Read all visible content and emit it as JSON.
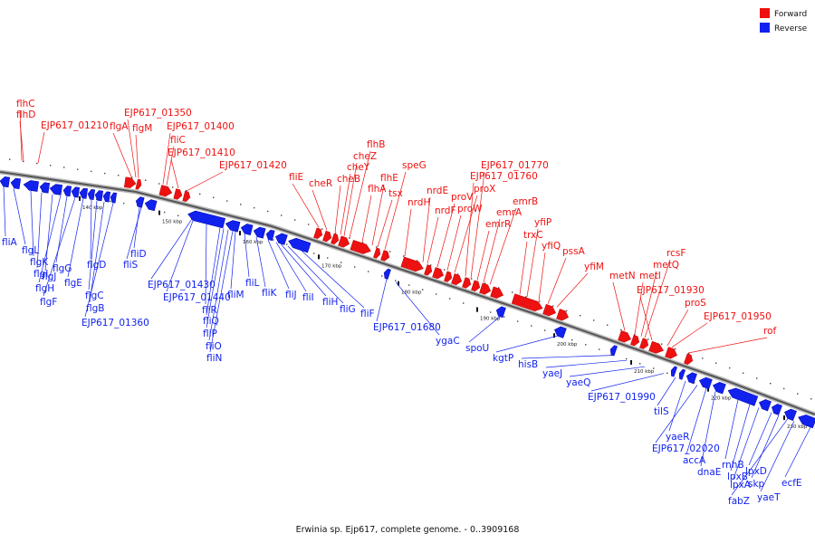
{
  "caption": "Erwinia sp. Ejp617, complete genome. - 0..3909168",
  "legend": {
    "forward": {
      "label": "Forward",
      "color": "#ee1111"
    },
    "reverse": {
      "label": "Reverse",
      "color": "#1122ee"
    }
  },
  "ticks": [
    "140 kbp",
    "150 kbp",
    "160 kbp",
    "170 kbp",
    "180 kbp",
    "190 kbp",
    "200 kbp",
    "210 kbp",
    "220 kbp",
    "230 kbp"
  ],
  "forward_labels": [
    "flhC",
    "flhD",
    "EJP617_01210",
    "flgA",
    "EJP617_01350",
    "flgM",
    "EJP617_01400",
    "fliC",
    "EJP617_01410",
    "EJP617_01420",
    "fliE",
    "cheR",
    "cheB",
    "cheY",
    "cheZ",
    "flhB",
    "flhA",
    "flhE",
    "tsx",
    "speG",
    "nrdH",
    "nrdE",
    "nrdF",
    "proV",
    "proW",
    "proX",
    "EJP617_01760",
    "EJP617_01770",
    "emrR",
    "emrA",
    "emrB",
    "trxC",
    "yfiP",
    "yfiQ",
    "pssA",
    "yfiM",
    "metN",
    "metI",
    "metQ",
    "rcsF",
    "EJP617_01930",
    "proS",
    "EJP617_01950",
    "rof"
  ],
  "reverse_labels": [
    "fliA",
    "flgL",
    "flgK",
    "flgI",
    "flgJ",
    "flgH",
    "flgG",
    "flgF",
    "flgE",
    "flgD",
    "flgC",
    "flgB",
    "EJP617_01360",
    "fliD",
    "fliS",
    "EJP617_01430",
    "EJP617_01440",
    "fliR",
    "fliQ",
    "fliP",
    "fliO",
    "fliN",
    "fliM",
    "fliL",
    "fliK",
    "fliJ",
    "fliI",
    "fliH",
    "fliG",
    "fliF",
    "EJP617_01680",
    "ygaC",
    "spoU",
    "kgtP",
    "hisB",
    "yaeJ",
    "yaeQ",
    "EJP617_01990",
    "tilS",
    "yaeR",
    "EJP617_02020",
    "accA",
    "dnaE",
    "rnhB",
    "lpxB",
    "lpxA",
    "lpxD",
    "skp",
    "fabZ",
    "yaeT",
    "ecfE"
  ]
}
